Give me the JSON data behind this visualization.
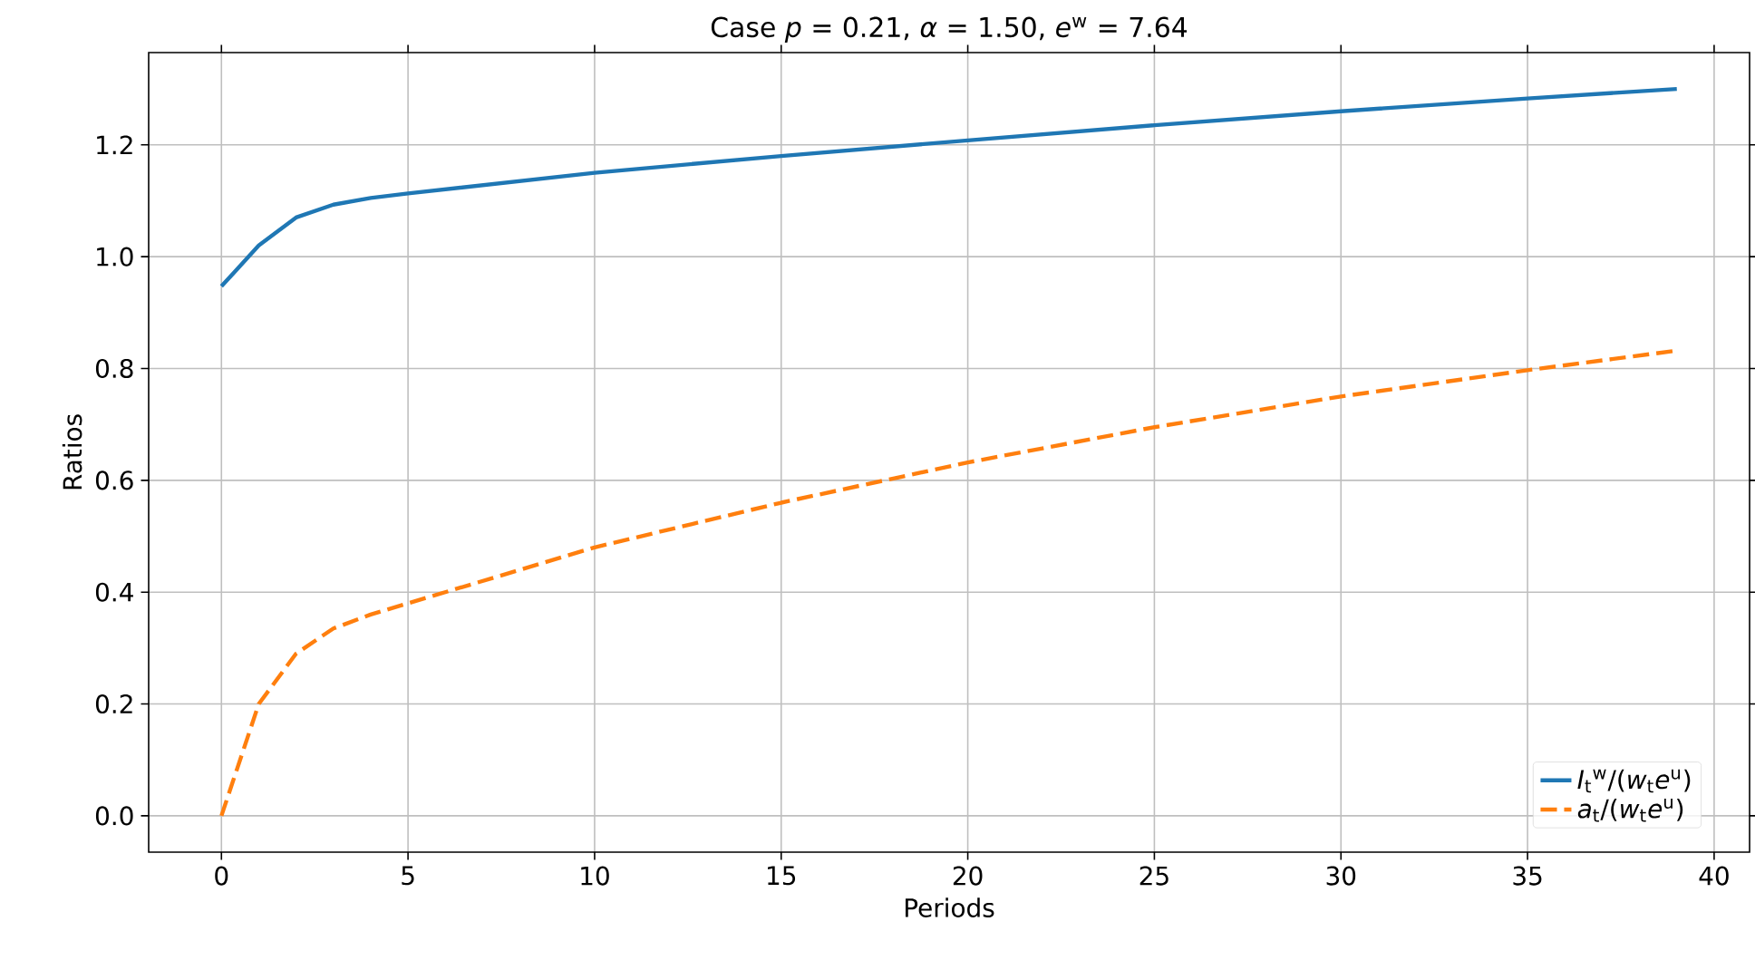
{
  "chart_data": {
    "type": "line",
    "title": "Case *p* = 0.21, *α* = 1.50, *e*$^{w}$ = 7.64",
    "xlabel": "Periods",
    "ylabel": "Ratios",
    "xlim": [
      -1.95,
      40.95
    ],
    "ylim": [
      -0.065,
      1.365
    ],
    "xticks": [
      0,
      5,
      10,
      15,
      20,
      25,
      30,
      35,
      40
    ],
    "yticks": [
      {
        "value": 0,
        "label": "0.0"
      },
      {
        "value": 0.2,
        "label": "0.2"
      },
      {
        "value": 0.4,
        "label": "0.4"
      },
      {
        "value": 0.6,
        "label": "0.6"
      },
      {
        "value": 0.8,
        "label": "0.8"
      },
      {
        "value": 1,
        "label": "1.0"
      },
      {
        "value": 1.2,
        "label": "1.2"
      }
    ],
    "grid": true,
    "legend": "bottom right",
    "series": [
      {
        "name": "*I*$_{t}$$^{w}$/(*w*$_{t}$*e*$^{u}$)",
        "color": "#1f77b4",
        "line_style": "solid",
        "x": [
          0,
          1,
          2,
          3,
          4,
          5,
          10,
          15,
          20,
          25,
          30,
          35,
          39
        ],
        "values": [
          0.947,
          1.02,
          1.07,
          1.093,
          1.105,
          1.113,
          1.15,
          1.18,
          1.208,
          1.235,
          1.26,
          1.283,
          1.3
        ]
      },
      {
        "name": "*a*$_{t}$/(*w*$_{t}$*e*$^{u}$)",
        "color": "#ff7f0e",
        "line_style": "dashed",
        "x": [
          0,
          1,
          2,
          3,
          4,
          5,
          10,
          15,
          20,
          25,
          30,
          35,
          39
        ],
        "values": [
          0,
          0.2,
          0.29,
          0.335,
          0.36,
          0.38,
          0.48,
          0.56,
          0.632,
          0.695,
          0.75,
          0.797,
          0.832
        ]
      }
    ]
  }
}
